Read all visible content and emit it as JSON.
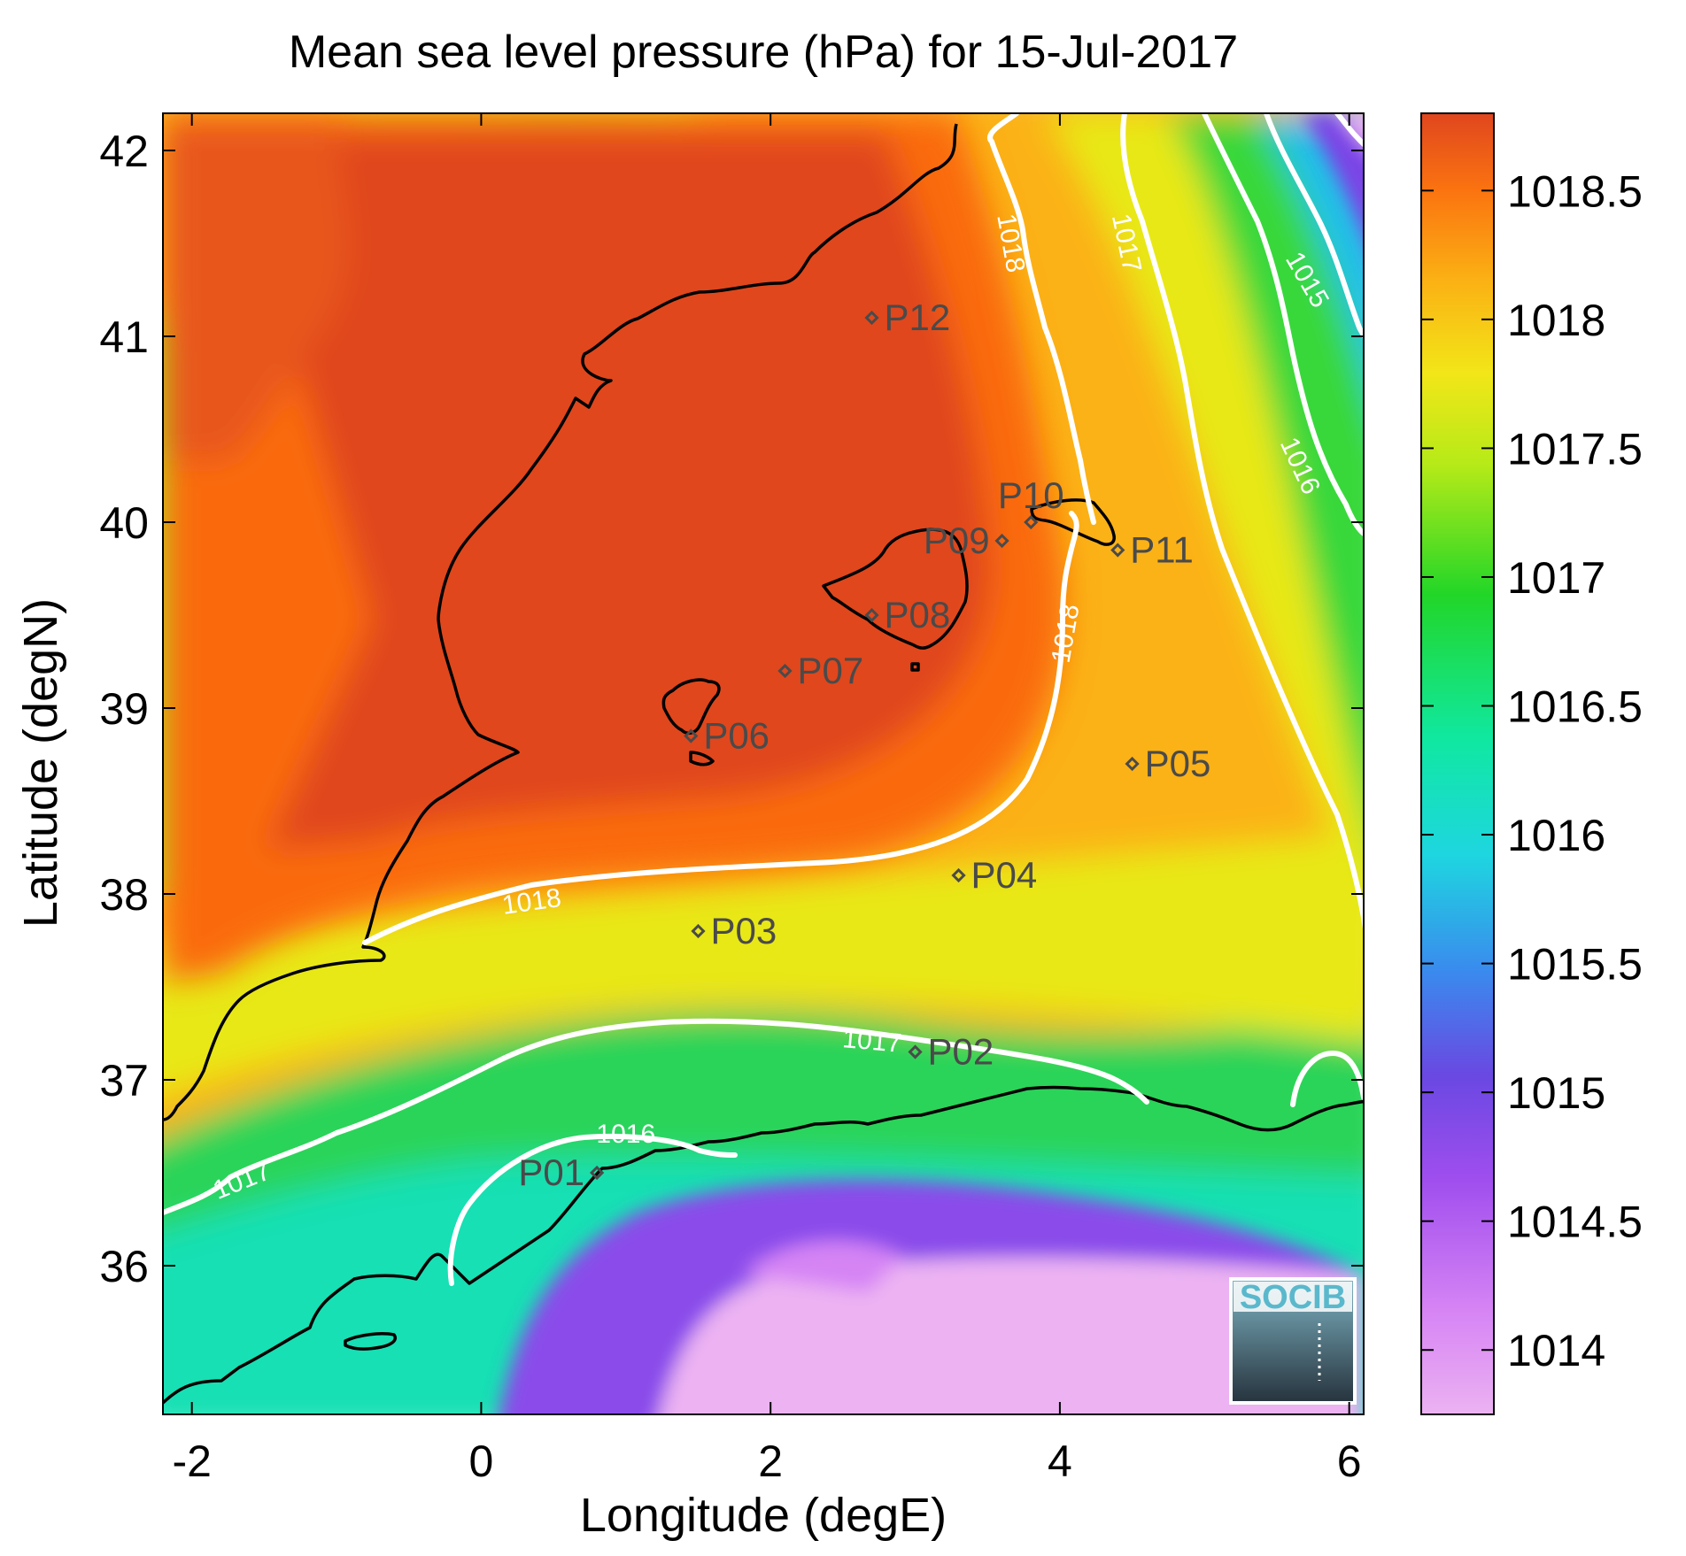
{
  "title": "Mean sea level pressure (hPa) for 15-Jul-2017",
  "xlabel": "Longitude (degE)",
  "ylabel": "Latitude (degN)",
  "logo_text": "SOCIB",
  "colors": {
    "high": "#e0461e",
    "orange": "#fa6d0c",
    "amber": "#fbb214",
    "yellow": "#eaea1a",
    "green": "#28d82a",
    "cyan": "#10e8c8",
    "blue": "#28aef0",
    "violet": "#7a44e6",
    "magenta": "#c85cf4",
    "low": "#ecb2f2",
    "land_border": "#000000",
    "contour": "#ffffff",
    "marker": "#4a4a4a"
  },
  "chart_data": {
    "type": "heatmap",
    "x_range": [
      -2.2,
      6.1
    ],
    "y_range": [
      35.2,
      42.2
    ],
    "x_ticks": [
      "-2",
      "0",
      "2",
      "4",
      "6"
    ],
    "x_tick_values": [
      -2,
      0,
      2,
      4,
      6
    ],
    "y_ticks": [
      "36",
      "37",
      "38",
      "39",
      "40",
      "41",
      "42"
    ],
    "y_tick_values": [
      36,
      37,
      38,
      39,
      40,
      41,
      42
    ],
    "colorbar": {
      "range": [
        1013.75,
        1018.8
      ],
      "ticks": [
        "1014",
        "1014.5",
        "1015",
        "1015.5",
        "1016",
        "1016.5",
        "1017",
        "1017.5",
        "1018",
        "1018.5"
      ],
      "tick_values": [
        1014,
        1014.5,
        1015,
        1015.5,
        1016,
        1016.5,
        1017,
        1017.5,
        1018,
        1018.5
      ]
    },
    "contour_labels": [
      {
        "text": "1018",
        "lon": 3.65,
        "lat": 41.5,
        "angle": 80
      },
      {
        "text": "1017",
        "lon": 4.45,
        "lat": 41.5,
        "angle": 78
      },
      {
        "text": "1015",
        "lon": 5.7,
        "lat": 41.3,
        "angle": 60
      },
      {
        "text": "1016",
        "lon": 5.65,
        "lat": 40.3,
        "angle": 65
      },
      {
        "text": "1018",
        "lon": 4.05,
        "lat": 39.4,
        "angle": -80
      },
      {
        "text": "1018",
        "lon": 0.35,
        "lat": 37.95,
        "angle": -8
      },
      {
        "text": "1017",
        "lon": 2.7,
        "lat": 37.2,
        "angle": 5
      },
      {
        "text": "1016",
        "lon": 1.0,
        "lat": 36.7,
        "angle": 0
      },
      {
        "text": "1017",
        "lon": -1.65,
        "lat": 36.45,
        "angle": -22
      }
    ],
    "points": [
      {
        "name": "P01",
        "lon": 0.8,
        "lat": 36.5,
        "label_side": "left"
      },
      {
        "name": "P02",
        "lon": 3.0,
        "lat": 37.15,
        "label_side": "right"
      },
      {
        "name": "P03",
        "lon": 1.5,
        "lat": 37.8,
        "label_side": "right"
      },
      {
        "name": "P04",
        "lon": 3.3,
        "lat": 38.1,
        "label_side": "right"
      },
      {
        "name": "P05",
        "lon": 4.5,
        "lat": 38.7,
        "label_side": "right"
      },
      {
        "name": "P06",
        "lon": 1.45,
        "lat": 38.85,
        "label_side": "right"
      },
      {
        "name": "P07",
        "lon": 2.1,
        "lat": 39.2,
        "label_side": "right"
      },
      {
        "name": "P08",
        "lon": 2.7,
        "lat": 39.5,
        "label_side": "right"
      },
      {
        "name": "P09",
        "lon": 3.6,
        "lat": 39.9,
        "label_side": "left"
      },
      {
        "name": "P10",
        "lon": 3.8,
        "lat": 40.0,
        "label_side": "above"
      },
      {
        "name": "P11",
        "lon": 4.4,
        "lat": 39.85,
        "label_side": "right"
      },
      {
        "name": "P12",
        "lon": 2.7,
        "lat": 41.1,
        "label_side": "right"
      }
    ]
  }
}
